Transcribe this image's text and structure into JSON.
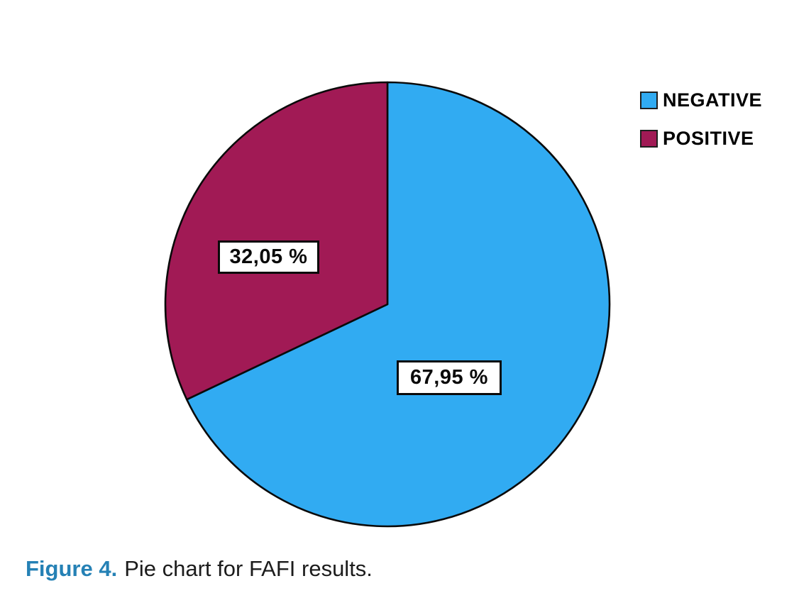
{
  "chart_data": {
    "type": "pie",
    "title": "",
    "categories": [
      "NEGATIVE",
      "POSITIVE"
    ],
    "series": [
      {
        "name": "NEGATIVE",
        "value": 67.95,
        "label": "67,95 %",
        "color": "#31ABF2"
      },
      {
        "name": "POSITIVE",
        "value": 32.05,
        "label": "32,05 %",
        "color": "#A11A55"
      }
    ],
    "start_angle_deg": -90,
    "direction": "clockwise",
    "outline_color": "#0a0a0a",
    "legend_position": "top-right",
    "grid": "off"
  },
  "legend": {
    "items": [
      {
        "label": "NEGATIVE",
        "color": "#31ABF2"
      },
      {
        "label": "POSITIVE",
        "color": "#A11A55"
      }
    ]
  },
  "caption": {
    "figure_label": "Figure 4.",
    "text": "Pie chart for FAFI results.",
    "label_color": "#2581B5"
  }
}
